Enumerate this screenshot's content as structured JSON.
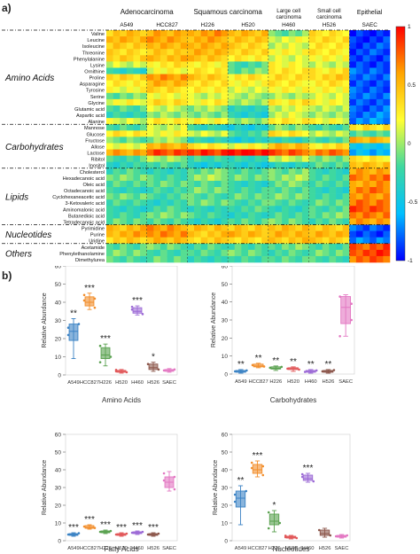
{
  "panel_a_label": "a)",
  "panel_b_label": "b)",
  "chart_data": [
    {
      "type": "heatmap",
      "groups": [
        {
          "label": "Adenocarcinoma",
          "cols": [
            "A549",
            "HCC827"
          ]
        },
        {
          "label": "Squamous carcinoma",
          "cols": [
            "H226",
            "H520"
          ]
        },
        {
          "label": "Large cell carcinoma",
          "cols": [
            "H460"
          ]
        },
        {
          "label": "Small cell carcinoma",
          "cols": [
            "H526"
          ]
        },
        {
          "label": "Epithelial",
          "cols": [
            "SAEC"
          ]
        }
      ],
      "columns": [
        "A549",
        "HCC827",
        "H226",
        "H520",
        "H460",
        "H526",
        "SAEC"
      ],
      "row_groups": [
        {
          "label": "Amino Acids",
          "rows": [
            "Valine",
            "Leucine",
            "Isoleucine",
            "Threonine",
            "Phenylalanine",
            "Lysine",
            "Ornithine",
            "Proline",
            "Asparagine",
            "Tyrosine",
            "Serine",
            "Glycine",
            "Glutamic acid",
            "Aspartic acid",
            "Alanine"
          ]
        },
        {
          "label": "Carbohydrates",
          "rows": [
            "Mannose",
            "Glucose",
            "Fructose",
            "Allose",
            "Lactose",
            "Ribitol",
            "Inositol"
          ]
        },
        {
          "label": "Lipids",
          "rows": [
            "Cholesterol",
            "Hexadecanoic acid",
            "Oleic acid",
            "Octadecanoic acid",
            "Cyclohexaneacetic acid",
            "3-Ketovaleric acid",
            "Aminomalonic acid",
            "Butanedioic acid",
            "Tetradecanoic acid"
          ]
        },
        {
          "label": "Nucleotides",
          "rows": [
            "Pyrimidine",
            "Purine",
            "Uridine"
          ]
        },
        {
          "label": "Others",
          "rows": [
            "Acetamide",
            "Phenylethanolamine",
            "Dimethylurea"
          ]
        }
      ],
      "colorbar": {
        "ticks": [
          1,
          0.5,
          0,
          -0.5,
          -1
        ],
        "tick_labels": [
          "1",
          "0.5",
          "0",
          "-0.5",
          "-1"
        ],
        "colors": [
          "#ff0000",
          "#ffa500",
          "#ffff33",
          "#3ed8a0",
          "#00bfff",
          "#0000ff"
        ]
      },
      "values": [
        [
          0.45,
          0.55,
          0.6,
          0.5,
          -0.1,
          0.3,
          -0.9
        ],
        [
          0.5,
          0.6,
          0.55,
          0.45,
          0.15,
          0.35,
          -0.9
        ],
        [
          0.4,
          0.55,
          0.5,
          0.4,
          0.1,
          0.3,
          -0.85
        ],
        [
          0.35,
          0.45,
          0.5,
          0.4,
          0.2,
          0.3,
          -0.85
        ],
        [
          0.4,
          0.5,
          0.45,
          0.3,
          0.1,
          0.25,
          -0.9
        ],
        [
          0.1,
          0.3,
          0.25,
          -0.2,
          0.2,
          0.1,
          -0.9
        ],
        [
          -0.3,
          0.2,
          0.3,
          -0.1,
          0.3,
          0.3,
          -0.8
        ],
        [
          0.4,
          0.6,
          0.45,
          0.3,
          0.35,
          0.4,
          -0.8
        ],
        [
          0.3,
          0.5,
          0.35,
          0.2,
          0.3,
          0.3,
          -0.85
        ],
        [
          0.2,
          0.35,
          0.3,
          0.1,
          0.25,
          0.2,
          -0.8
        ],
        [
          -0.1,
          0.2,
          0.1,
          0,
          0.05,
          0.1,
          -0.75
        ],
        [
          0.2,
          0.35,
          0.25,
          0,
          0.3,
          0.2,
          -0.8
        ],
        [
          -0.2,
          0.1,
          0,
          -0.3,
          0.1,
          0.05,
          -0.8
        ],
        [
          -0.3,
          0,
          -0.1,
          -0.35,
          0.1,
          0,
          -0.75
        ],
        [
          0.1,
          0.3,
          0.2,
          0,
          0.25,
          0.2,
          -0.7
        ],
        [
          -0.2,
          0.1,
          -0.3,
          -0.4,
          -0.1,
          -0.2,
          0.3
        ],
        [
          0.3,
          0.2,
          0.1,
          -0.2,
          0.3,
          0.1,
          -0.2
        ],
        [
          -0.1,
          0,
          -0.3,
          -0.4,
          -0.3,
          -0.2,
          0.5
        ],
        [
          0.2,
          0.5,
          0.3,
          0.2,
          0.5,
          0.3,
          -0.5
        ],
        [
          0.6,
          0.8,
          0.9,
          0.95,
          0.8,
          0.7,
          -0.6
        ],
        [
          -0.2,
          0,
          -0.2,
          -0.3,
          0.1,
          -0.1,
          0.3
        ],
        [
          -0.3,
          -0.2,
          -0.4,
          -0.4,
          -0.3,
          -0.2,
          0.5
        ],
        [
          -0.2,
          -0.3,
          -0.1,
          -0.2,
          -0.1,
          -0.3,
          0.6
        ],
        [
          -0.1,
          -0.2,
          0,
          -0.1,
          0,
          -0.2,
          0.7
        ],
        [
          -0.2,
          -0.1,
          -0.2,
          -0.3,
          -0.1,
          -0.2,
          0.6
        ],
        [
          -0.3,
          -0.2,
          -0.1,
          -0.2,
          -0.2,
          -0.3,
          0.7
        ],
        [
          -0.1,
          -0.2,
          -0.2,
          -0.1,
          -0.1,
          -0.2,
          0.6
        ],
        [
          -0.2,
          -0.3,
          -0.1,
          -0.2,
          -0.2,
          -0.1,
          0.7
        ],
        [
          -0.3,
          -0.2,
          -0.3,
          -0.2,
          -0.3,
          -0.2,
          0.8
        ],
        [
          -0.2,
          -0.1,
          -0.2,
          -0.3,
          -0.2,
          -0.1,
          0.7
        ],
        [
          -0.1,
          -0.2,
          -0.3,
          -0.2,
          -0.1,
          -0.2,
          0.6
        ],
        [
          0.5,
          0.6,
          0.5,
          0.4,
          0.5,
          0.4,
          -0.8
        ],
        [
          0.55,
          0.65,
          0.45,
          0.5,
          0.55,
          0.5,
          -0.85
        ],
        [
          0.4,
          0.5,
          0.4,
          0.35,
          0.45,
          0.4,
          -0.7
        ],
        [
          -0.2,
          -0.1,
          -0.2,
          -0.2,
          -0.1,
          -0.2,
          0.8
        ],
        [
          -0.1,
          -0.2,
          -0.2,
          -0.1,
          -0.2,
          -0.1,
          0.85
        ],
        [
          -0.2,
          -0.1,
          -0.3,
          -0.2,
          -0.2,
          -0.2,
          0.75
        ]
      ]
    },
    {
      "type": "box",
      "xlabel": "Amino Acids",
      "ylabel": "Relative Abundance",
      "ylim": [
        0,
        60
      ],
      "yticks": [
        0,
        10,
        20,
        30,
        40,
        50,
        60
      ],
      "categories": [
        "A549",
        "HCC827",
        "H226",
        "H520",
        "H460",
        "H526",
        "SAEC"
      ],
      "colors": [
        "#3a82c4",
        "#f28e2b",
        "#59a14f",
        "#e15759",
        "#9c6ad6",
        "#8c564b",
        "#e377c2"
      ],
      "boxes": [
        {
          "min": 9,
          "q1": 19,
          "median": 24,
          "q3": 28,
          "max": 31,
          "points": [
            26,
            28,
            22
          ],
          "sig": "**"
        },
        {
          "min": 36,
          "q1": 38,
          "median": 40,
          "q3": 43,
          "max": 45,
          "points": [
            44,
            37,
            41,
            42
          ],
          "sig": "***"
        },
        {
          "min": 5,
          "q1": 9,
          "median": 11,
          "q3": 15,
          "max": 17,
          "points": [
            16,
            10,
            7
          ],
          "sig": "***"
        },
        {
          "min": 1,
          "q1": 1.5,
          "median": 2,
          "q3": 2.5,
          "max": 3,
          "points": [
            2,
            1.5,
            2.8
          ],
          "sig": ""
        },
        {
          "min": 33,
          "q1": 34,
          "median": 35,
          "q3": 37,
          "max": 38,
          "points": [
            36,
            33.5,
            37.5
          ],
          "sig": "***"
        },
        {
          "min": 2,
          "q1": 3,
          "median": 4,
          "q3": 6,
          "max": 7,
          "points": [
            6,
            3
          ],
          "sig": "*"
        },
        {
          "min": 1.5,
          "q1": 2,
          "median": 2.5,
          "q3": 3,
          "max": 3.5,
          "points": [
            2.5,
            3
          ],
          "sig": ""
        }
      ]
    },
    {
      "type": "box",
      "xlabel": "Carbohydrates",
      "ylabel": "Relative Abundance",
      "ylim": [
        0,
        60
      ],
      "yticks": [
        0,
        10,
        20,
        30,
        40,
        50,
        60
      ],
      "categories": [
        "A549",
        "HCC827",
        "H226",
        "H520",
        "H460",
        "H526",
        "SAEC"
      ],
      "colors": [
        "#3a82c4",
        "#f28e2b",
        "#59a14f",
        "#e15759",
        "#9c6ad6",
        "#8c564b",
        "#e377c2"
      ],
      "boxes": [
        {
          "min": 0.5,
          "q1": 1,
          "median": 1.5,
          "q3": 2,
          "max": 2.5,
          "points": [
            1.5,
            2
          ],
          "sig": "**"
        },
        {
          "min": 3.5,
          "q1": 4,
          "median": 4.5,
          "q3": 5.5,
          "max": 6,
          "points": [
            5,
            4.2
          ],
          "sig": "**"
        },
        {
          "min": 2,
          "q1": 2.8,
          "median": 3.2,
          "q3": 4,
          "max": 4.5,
          "points": [
            3.5,
            4
          ],
          "sig": "**"
        },
        {
          "min": 1.5,
          "q1": 2.5,
          "median": 3,
          "q3": 3.5,
          "max": 4,
          "points": [
            3,
            2.5
          ],
          "sig": "**"
        },
        {
          "min": 0.5,
          "q1": 1,
          "median": 1.5,
          "q3": 2,
          "max": 2.5,
          "points": [
            1.2,
            2
          ],
          "sig": "**"
        },
        {
          "min": 0.5,
          "q1": 1,
          "median": 1.5,
          "q3": 2,
          "max": 2.5,
          "points": [
            1.5,
            2.2
          ],
          "sig": "**"
        },
        {
          "min": 21,
          "q1": 28,
          "median": 37,
          "q3": 43,
          "max": 44,
          "points": [
            21,
            39,
            43,
            30
          ],
          "sig": ""
        }
      ]
    },
    {
      "type": "box",
      "xlabel": "Fatty Acids",
      "ylabel": "Relative Abundance",
      "ylim": [
        0,
        60
      ],
      "yticks": [
        0,
        10,
        20,
        30,
        40,
        50,
        60
      ],
      "categories": [
        "A549",
        "HCC827",
        "H226",
        "H520",
        "H460",
        "H526",
        "SAEC"
      ],
      "colors": [
        "#3a82c4",
        "#f28e2b",
        "#59a14f",
        "#e15759",
        "#9c6ad6",
        "#8c564b",
        "#e377c2"
      ],
      "boxes": [
        {
          "min": 2.5,
          "q1": 3,
          "median": 3.5,
          "q3": 4,
          "max": 4.5,
          "points": [
            3.5,
            4.2
          ],
          "sig": "***"
        },
        {
          "min": 6.5,
          "q1": 7,
          "median": 7.5,
          "q3": 8.5,
          "max": 9,
          "points": [
            8,
            7.2
          ],
          "sig": "***"
        },
        {
          "min": 4,
          "q1": 4.5,
          "median": 5,
          "q3": 5.5,
          "max": 6,
          "points": [
            5,
            5.5
          ],
          "sig": "***"
        },
        {
          "min": 2.5,
          "q1": 3,
          "median": 3.5,
          "q3": 4,
          "max": 4.5,
          "points": [
            3.5,
            4
          ],
          "sig": "***"
        },
        {
          "min": 3.5,
          "q1": 4,
          "median": 4.5,
          "q3": 5,
          "max": 5.5,
          "points": [
            4.5,
            5
          ],
          "sig": "***"
        },
        {
          "min": 2.5,
          "q1": 3,
          "median": 3.5,
          "q3": 4,
          "max": 4.5,
          "points": [
            3.5,
            4
          ],
          "sig": "***"
        },
        {
          "min": 28,
          "q1": 30,
          "median": 33,
          "q3": 36,
          "max": 39,
          "points": [
            38,
            29,
            34,
            36
          ],
          "sig": ""
        }
      ]
    },
    {
      "type": "box",
      "xlabel": "Nucleotides",
      "ylabel": "Relative Abundance",
      "ylim": [
        0,
        60
      ],
      "yticks": [
        0,
        10,
        20,
        30,
        40,
        50,
        60
      ],
      "categories": [
        "A549",
        "HCC827",
        "H226",
        "H520",
        "H460",
        "H526",
        "SAEC"
      ],
      "colors": [
        "#3a82c4",
        "#f28e2b",
        "#59a14f",
        "#e15759",
        "#9c6ad6",
        "#8c564b",
        "#e377c2"
      ],
      "boxes": [
        {
          "min": 9,
          "q1": 19,
          "median": 24,
          "q3": 28,
          "max": 31,
          "points": [
            26,
            28,
            22
          ],
          "sig": "**"
        },
        {
          "min": 36,
          "q1": 38,
          "median": 40,
          "q3": 43,
          "max": 45,
          "points": [
            44,
            37,
            41,
            42
          ],
          "sig": "***"
        },
        {
          "min": 5,
          "q1": 9,
          "median": 11,
          "q3": 15,
          "max": 17,
          "points": [
            16,
            10,
            7
          ],
          "sig": "*"
        },
        {
          "min": 1,
          "q1": 1.5,
          "median": 2,
          "q3": 2.5,
          "max": 3,
          "points": [
            2,
            1.5,
            2.8
          ],
          "sig": ""
        },
        {
          "min": 33,
          "q1": 34,
          "median": 35,
          "q3": 37,
          "max": 38,
          "points": [
            36,
            33.5,
            37.5
          ],
          "sig": "***"
        },
        {
          "min": 2,
          "q1": 3,
          "median": 4,
          "q3": 6,
          "max": 7,
          "points": [
            6,
            3
          ],
          "sig": ""
        },
        {
          "min": 1.5,
          "q1": 2,
          "median": 2.5,
          "q3": 3,
          "max": 3.5,
          "points": [
            2.5,
            3
          ],
          "sig": ""
        }
      ]
    }
  ]
}
